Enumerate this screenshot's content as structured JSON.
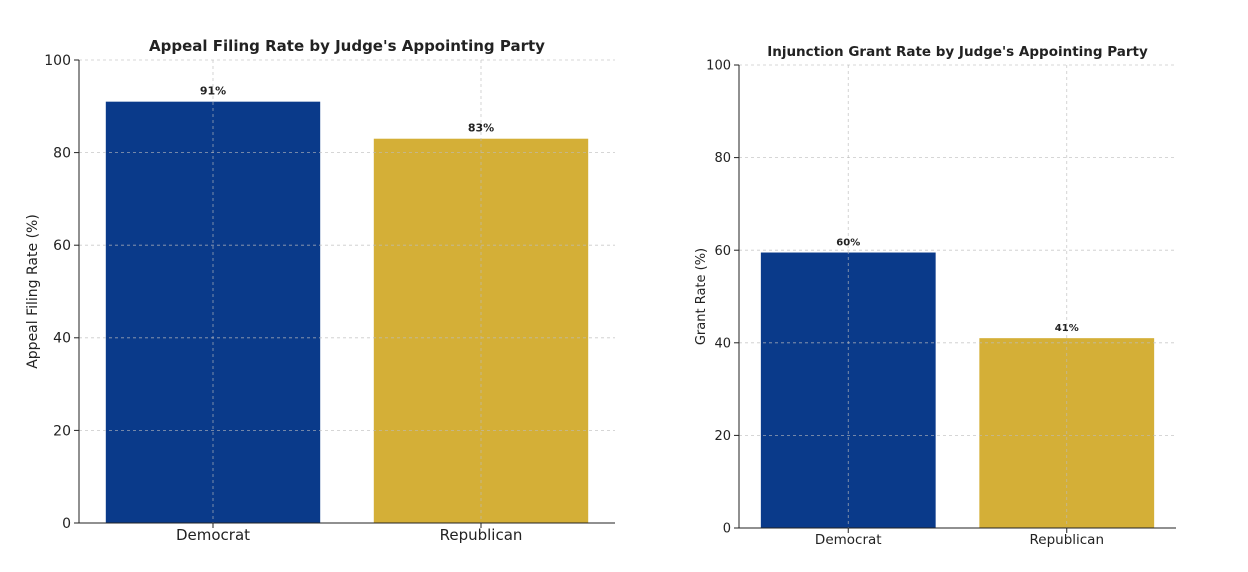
{
  "chart_data": [
    {
      "type": "bar",
      "title": "Appeal Filing Rate by Judge's Appointing Party",
      "xlabel": "",
      "ylabel": "Appeal Filing Rate (%)",
      "categories": [
        "Democrat",
        "Republican"
      ],
      "values": [
        91,
        83
      ],
      "value_labels": [
        "91%",
        "83%"
      ],
      "colors": [
        "#0a3a8a",
        "#d4af37"
      ],
      "ylim": [
        0,
        100
      ],
      "yticks": [
        0,
        20,
        40,
        60,
        80,
        100
      ],
      "grid": true
    },
    {
      "type": "bar",
      "title": "Injunction Grant Rate by Judge's Appointing Party",
      "xlabel": "",
      "ylabel": "Grant Rate (%)",
      "categories": [
        "Democrat",
        "Republican"
      ],
      "values": [
        59.5,
        41
      ],
      "value_labels": [
        "60%",
        "41%"
      ],
      "colors": [
        "#0a3a8a",
        "#d4af37"
      ],
      "ylim": [
        0,
        100
      ],
      "yticks": [
        0,
        20,
        40,
        60,
        80,
        100
      ],
      "grid": true
    }
  ]
}
